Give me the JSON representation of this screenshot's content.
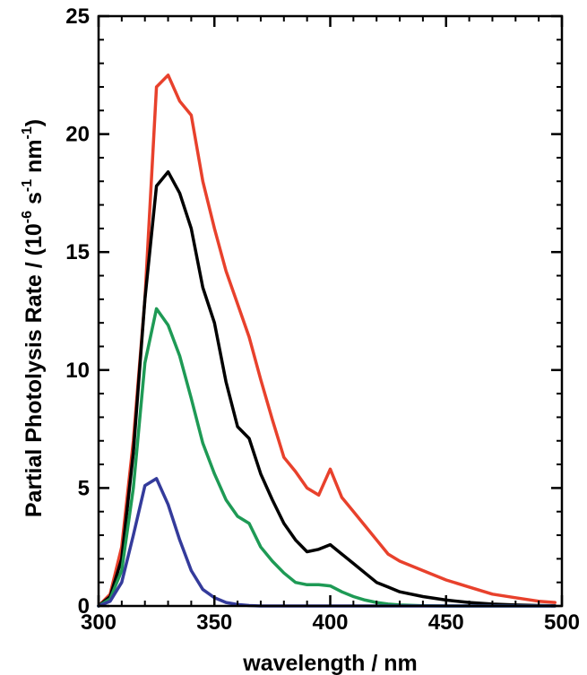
{
  "chart_data": {
    "type": "line",
    "title": "",
    "xlabel": "wavelength / nm",
    "ylabel": {
      "main": "Partial Photolysis Rate / (10",
      "exp1": "-6",
      "mid": " s",
      "exp2": "-1",
      "mid2": " nm",
      "exp3": "-1",
      "end": ")"
    },
    "xlim": [
      300,
      500
    ],
    "ylim": [
      0,
      25
    ],
    "x_ticks": [
      300,
      350,
      400,
      450,
      500
    ],
    "y_ticks": [
      0,
      5,
      10,
      15,
      20,
      25
    ],
    "grid": false,
    "legend": "none",
    "series": [
      {
        "color": "#e8412c",
        "points": [
          [
            300,
            0
          ],
          [
            305,
            0.5
          ],
          [
            310,
            2.5
          ],
          [
            315,
            7
          ],
          [
            320,
            13
          ],
          [
            325,
            22
          ],
          [
            330,
            22.5
          ],
          [
            335,
            21.4
          ],
          [
            340,
            20.8
          ],
          [
            345,
            18
          ],
          [
            350,
            16
          ],
          [
            355,
            14.2
          ],
          [
            360,
            12.8
          ],
          [
            365,
            11.4
          ],
          [
            370,
            9.6
          ],
          [
            375,
            7.9
          ],
          [
            380,
            6.3
          ],
          [
            385,
            5.7
          ],
          [
            390,
            5.0
          ],
          [
            395,
            4.7
          ],
          [
            400,
            5.8
          ],
          [
            405,
            4.6
          ],
          [
            410,
            4.0
          ],
          [
            415,
            3.4
          ],
          [
            420,
            2.8
          ],
          [
            425,
            2.2
          ],
          [
            430,
            1.9
          ],
          [
            440,
            1.5
          ],
          [
            450,
            1.1
          ],
          [
            460,
            0.8
          ],
          [
            470,
            0.5
          ],
          [
            480,
            0.35
          ],
          [
            490,
            0.2
          ],
          [
            497,
            0.15
          ]
        ]
      },
      {
        "color": "#000000",
        "points": [
          [
            300,
            0
          ],
          [
            305,
            0.4
          ],
          [
            310,
            2.0
          ],
          [
            315,
            6.5
          ],
          [
            320,
            13
          ],
          [
            325,
            17.8
          ],
          [
            330,
            18.4
          ],
          [
            335,
            17.5
          ],
          [
            340,
            16
          ],
          [
            345,
            13.5
          ],
          [
            350,
            12
          ],
          [
            355,
            9.5
          ],
          [
            360,
            7.6
          ],
          [
            365,
            7.1
          ],
          [
            370,
            5.6
          ],
          [
            375,
            4.5
          ],
          [
            380,
            3.5
          ],
          [
            385,
            2.8
          ],
          [
            390,
            2.3
          ],
          [
            395,
            2.4
          ],
          [
            400,
            2.6
          ],
          [
            405,
            2.2
          ],
          [
            410,
            1.8
          ],
          [
            415,
            1.4
          ],
          [
            420,
            1.0
          ],
          [
            425,
            0.8
          ],
          [
            430,
            0.6
          ],
          [
            440,
            0.4
          ],
          [
            450,
            0.25
          ],
          [
            460,
            0.15
          ],
          [
            470,
            0.08
          ],
          [
            480,
            0.04
          ],
          [
            490,
            0.02
          ],
          [
            497,
            0.01
          ]
        ]
      },
      {
        "color": "#1e9a55",
        "points": [
          [
            300,
            0
          ],
          [
            305,
            0.3
          ],
          [
            310,
            1.5
          ],
          [
            315,
            5
          ],
          [
            320,
            10.3
          ],
          [
            325,
            12.6
          ],
          [
            330,
            11.9
          ],
          [
            335,
            10.6
          ],
          [
            340,
            8.8
          ],
          [
            345,
            6.9
          ],
          [
            350,
            5.6
          ],
          [
            355,
            4.5
          ],
          [
            360,
            3.8
          ],
          [
            365,
            3.5
          ],
          [
            370,
            2.5
          ],
          [
            375,
            1.9
          ],
          [
            380,
            1.4
          ],
          [
            385,
            1.0
          ],
          [
            390,
            0.9
          ],
          [
            395,
            0.9
          ],
          [
            400,
            0.85
          ],
          [
            405,
            0.6
          ],
          [
            410,
            0.4
          ],
          [
            415,
            0.25
          ],
          [
            420,
            0.15
          ],
          [
            425,
            0.08
          ],
          [
            430,
            0.04
          ],
          [
            440,
            0.01
          ],
          [
            450,
            0
          ],
          [
            497,
            0
          ]
        ]
      },
      {
        "color": "#343b9b",
        "points": [
          [
            300,
            0
          ],
          [
            305,
            0.2
          ],
          [
            310,
            1.0
          ],
          [
            315,
            3
          ],
          [
            320,
            5.1
          ],
          [
            325,
            5.4
          ],
          [
            330,
            4.3
          ],
          [
            335,
            2.8
          ],
          [
            340,
            1.5
          ],
          [
            345,
            0.7
          ],
          [
            350,
            0.35
          ],
          [
            355,
            0.15
          ],
          [
            360,
            0.06
          ],
          [
            365,
            0.02
          ],
          [
            370,
            0
          ],
          [
            380,
            0
          ],
          [
            497,
            0
          ]
        ]
      }
    ]
  }
}
